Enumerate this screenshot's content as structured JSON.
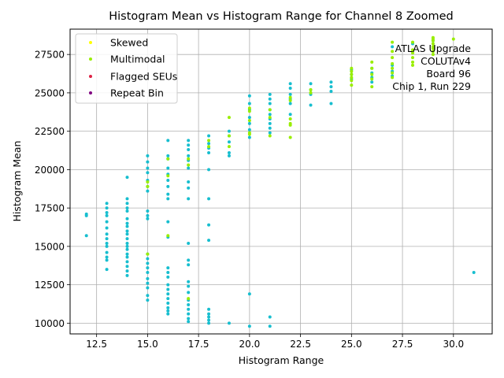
{
  "chart_data": {
    "type": "scatter",
    "title": "Histogram Mean vs Histogram Range for Channel 8 Zoomed",
    "xlabel": "Histogram Range",
    "ylabel": "Histogram Mean",
    "xlim": [
      11.2,
      31.9
    ],
    "ylim": [
      9300,
      29150
    ],
    "x_ticks": [
      12.5,
      15.0,
      17.5,
      20.0,
      22.5,
      25.0,
      27.5,
      30.0
    ],
    "x_tick_labels": [
      "12.5",
      "15.0",
      "17.5",
      "20.0",
      "22.5",
      "25.0",
      "27.5",
      "30.0"
    ],
    "y_ticks": [
      10000,
      12500,
      15000,
      17500,
      20000,
      22500,
      25000,
      27500
    ],
    "y_tick_labels": [
      "10000",
      "12500",
      "15000",
      "17500",
      "20000",
      "22500",
      "25000",
      "27500"
    ],
    "grid": true,
    "legend_position": "upper-left",
    "legend": [
      {
        "label": "Skewed",
        "color": "#ffff00"
      },
      {
        "label": "Multimodal",
        "color": "#99ee00"
      },
      {
        "label": "Flagged SEUs",
        "color": "#dd2244"
      },
      {
        "label": "Repeat Bin",
        "color": "#800080"
      }
    ],
    "annotation": [
      "ATLAS Upgrade",
      "COLUTAv4",
      "Board 96",
      "Chip 1, Run 229"
    ],
    "series": [
      {
        "color": "#17becf",
        "columns": [
          [
            12,
            [
              17100,
              17000,
              15700
            ]
          ],
          [
            13,
            [
              17800,
              17500,
              17200,
              17000,
              16600,
              16200,
              15800,
              15500,
              15200,
              15000,
              14600,
              14300,
              14100,
              13500
            ]
          ],
          [
            14,
            [
              19500,
              18100,
              17800,
              17500,
              17300,
              16800,
              16500,
              16300,
              16000,
              15800,
              15500,
              15200,
              15000,
              14800,
              14500,
              14300,
              14000,
              13700,
              13400,
              13100
            ]
          ],
          [
            15,
            [
              20900,
              20500,
              20100,
              19800,
              19300,
              18900,
              18600,
              17300,
              17000,
              16800,
              14500,
              14200,
              13900,
              13600,
              13300,
              12900,
              12600,
              12300,
              11800,
              11500
            ]
          ],
          [
            16,
            [
              21900,
              20900,
              20700,
              20100,
              19700,
              19300,
              18900,
              18400,
              18100,
              16600,
              15600,
              13600,
              13300,
              13000,
              12500,
              12200,
              11900,
              11600,
              11300,
              11000,
              10800,
              10600
            ]
          ],
          [
            17,
            [
              21900,
              21600,
              21300,
              20900,
              20600,
              20100,
              19200,
              18800,
              18100,
              15200,
              14100,
              13800,
              12700,
              12400,
              12000,
              11500,
              11200,
              10900,
              10600,
              10300,
              10100
            ]
          ],
          [
            18,
            [
              22200,
              21700,
              21400,
              21100,
              20000,
              18100,
              16400,
              15400,
              10900,
              10600,
              10400,
              10200,
              10000
            ]
          ],
          [
            19,
            [
              22500,
              22200,
              21800,
              21100,
              20900,
              10000
            ]
          ],
          [
            20,
            [
              24800,
              24300,
              23900,
              23400,
              23000,
              22600,
              22100,
              11900,
              9800
            ]
          ],
          [
            21,
            [
              24900,
              24600,
              24300,
              23900,
              23600,
              23300,
              23000,
              22700,
              22400,
              10400,
              9800
            ]
          ],
          [
            22,
            [
              25600,
              25300,
              24900,
              24600,
              24300,
              23600
            ]
          ],
          [
            23,
            [
              25600,
              25200,
              24900,
              24200
            ]
          ],
          [
            24,
            [
              25700,
              25400,
              25100,
              24300
            ]
          ],
          [
            25,
            [
              26500,
              26200,
              25900
            ]
          ],
          [
            26,
            [
              26600,
              26300,
              26000,
              25700
            ]
          ],
          [
            27,
            [
              26800,
              26400,
              26100,
              28000
            ]
          ],
          [
            28,
            [
              28200
            ]
          ],
          [
            29,
            [
              28400
            ]
          ],
          [
            31,
            [
              13300
            ]
          ]
        ]
      },
      {
        "color": "#99ee00",
        "columns": [
          [
            15,
            [
              19200,
              18900,
              14500
            ]
          ],
          [
            16,
            [
              20700,
              19600,
              15700
            ]
          ],
          [
            17,
            [
              20700,
              20300,
              11600
            ]
          ],
          [
            18,
            [
              21900,
              21500
            ]
          ],
          [
            19,
            [
              23400,
              22200,
              21500
            ]
          ],
          [
            20,
            [
              24000,
              23800,
              23200,
              22400,
              22300
            ]
          ],
          [
            21,
            [
              23900,
              23400,
              22200
            ]
          ],
          [
            22,
            [
              24700,
              24500,
              23300,
              23000,
              22900,
              22100
            ]
          ],
          [
            23,
            [
              25200,
              25000
            ]
          ],
          [
            25,
            [
              26600,
              26400,
              26200,
              26000,
              25800,
              25500
            ]
          ],
          [
            26,
            [
              27000,
              26600,
              26200,
              25900,
              25400
            ]
          ],
          [
            27,
            [
              28300,
              27700,
              27300,
              26900,
              26600,
              26300,
              26000
            ]
          ],
          [
            28,
            [
              28300,
              27800,
              27600,
              27300,
              27000,
              26800
            ]
          ],
          [
            29,
            [
              28600,
              28500,
              28400,
              28200,
              28000,
              27900,
              27700,
              27500
            ]
          ],
          [
            30,
            [
              28500
            ]
          ]
        ]
      }
    ]
  }
}
